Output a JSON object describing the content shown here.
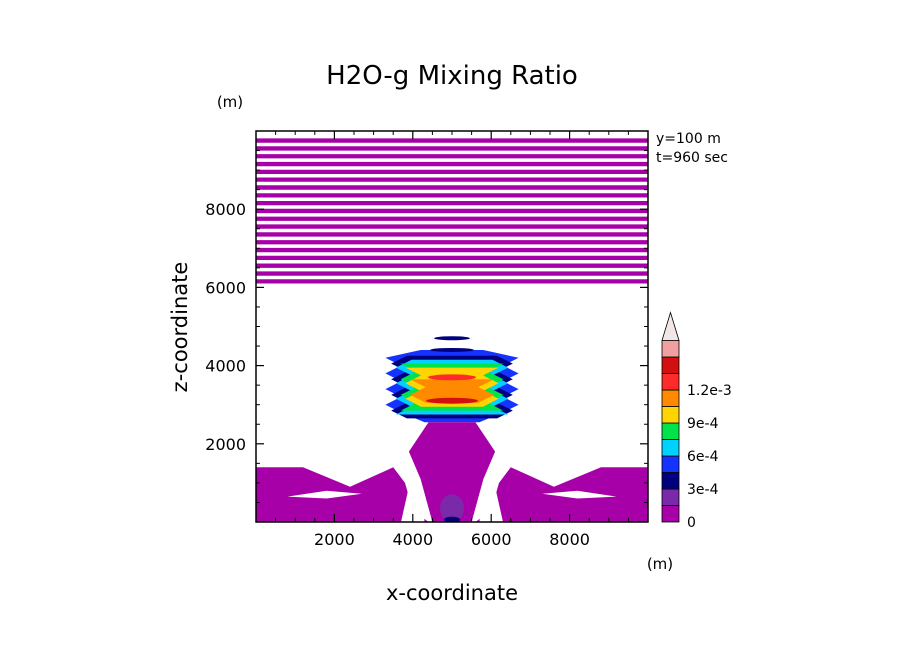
{
  "chart_data": {
    "type": "heatmap",
    "title": "H2O-g Mixing Ratio",
    "xlabel": "x-coordinate",
    "ylabel": "z-coordinate",
    "x_unit": "(m)",
    "y_unit": "(m)",
    "annotations": [
      "y=100 m",
      "t=960 sec"
    ],
    "xlim": [
      0,
      10000
    ],
    "ylim": [
      0,
      10000
    ],
    "xticks": [
      2000,
      4000,
      6000,
      8000
    ],
    "yticks": [
      2000,
      4000,
      6000,
      8000
    ],
    "colorbar": {
      "placement": "right",
      "extend": "max",
      "levels": [
        0,
        0.00015,
        0.0003,
        0.00045,
        0.0006,
        0.00075,
        0.0009,
        0.00105,
        0.0012,
        0.00135
      ],
      "colors": [
        "#a800a8",
        "#7a2aa8",
        "#00007e",
        "#1533ff",
        "#00d2ff",
        "#00e34a",
        "#ffd400",
        "#ff8a00",
        "#ff2a2a",
        "#d21010",
        "#f0a0a0",
        "#f2e6e6"
      ],
      "tick_labels": [
        "0",
        "3e-4",
        "6e-4",
        "9e-4",
        "1.2e-3"
      ],
      "tick_values": [
        0,
        0.0003,
        0.0006,
        0.0009,
        0.0012
      ]
    }
  }
}
